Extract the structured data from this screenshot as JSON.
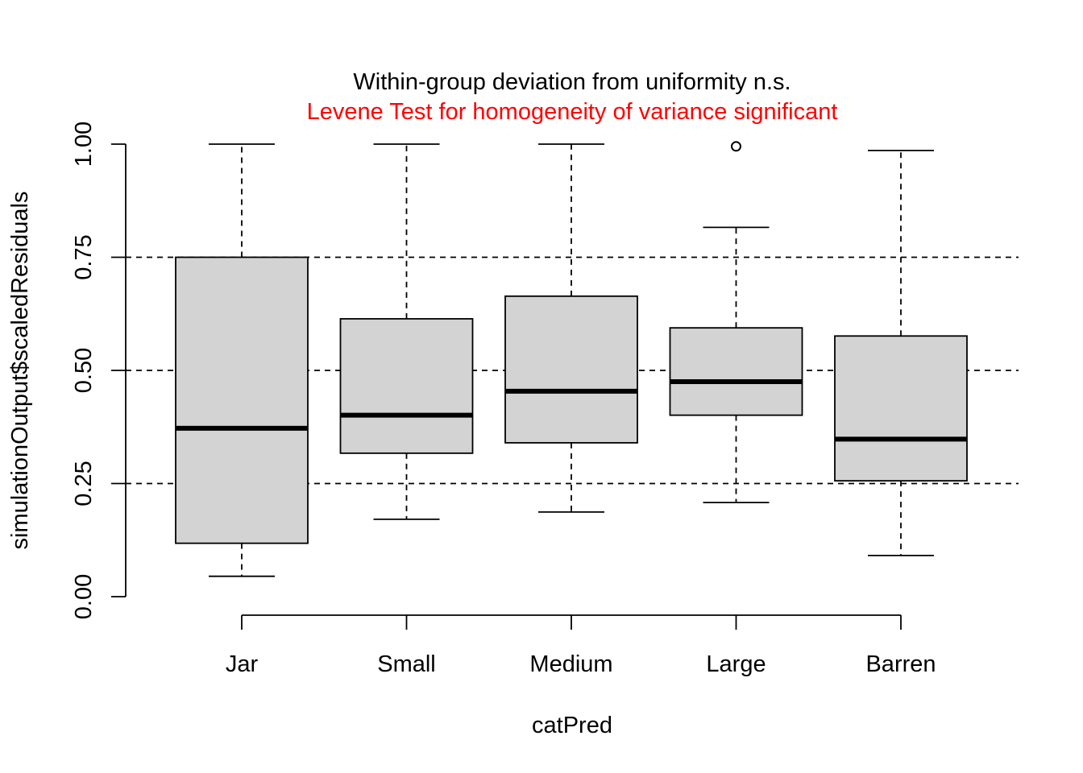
{
  "chart_data": {
    "type": "boxplot",
    "title": "Within-group deviation from uniformity n.s.",
    "subtitle": "Levene Test for homogeneity of variance significant",
    "xlabel": "catPred",
    "ylabel": "simulationOutput$scaledResiduals",
    "ylim": [
      0,
      1
    ],
    "yticks": [
      0,
      0.25,
      0.5,
      0.75,
      1
    ],
    "ytick_labels": [
      "0.00",
      "0.25",
      "0.50",
      "0.75",
      "1.00"
    ],
    "reference_lines": [
      0.25,
      0.5,
      0.75
    ],
    "categories": [
      "Jar",
      "Small",
      "Medium",
      "Large",
      "Barren"
    ],
    "boxes": [
      {
        "label": "Jar",
        "whisker_low": 0.045,
        "q1": 0.118,
        "median": 0.372,
        "q3": 0.75,
        "whisker_high": 1.0,
        "outliers": []
      },
      {
        "label": "Small",
        "whisker_low": 0.171,
        "q1": 0.317,
        "median": 0.401,
        "q3": 0.614,
        "whisker_high": 1.0,
        "outliers": []
      },
      {
        "label": "Medium",
        "whisker_low": 0.187,
        "q1": 0.34,
        "median": 0.454,
        "q3": 0.664,
        "whisker_high": 1.0,
        "outliers": []
      },
      {
        "label": "Large",
        "whisker_low": 0.208,
        "q1": 0.401,
        "median": 0.475,
        "q3": 0.594,
        "whisker_high": 0.816,
        "outliers": [
          0.995
        ]
      },
      {
        "label": "Barren",
        "whisker_low": 0.091,
        "q1": 0.256,
        "median": 0.348,
        "q3": 0.576,
        "whisker_high": 0.986,
        "outliers": []
      }
    ],
    "colors": {
      "box_fill": "#d3d3d3",
      "stroke": "#000000",
      "subtitle": "#ff0000"
    }
  }
}
